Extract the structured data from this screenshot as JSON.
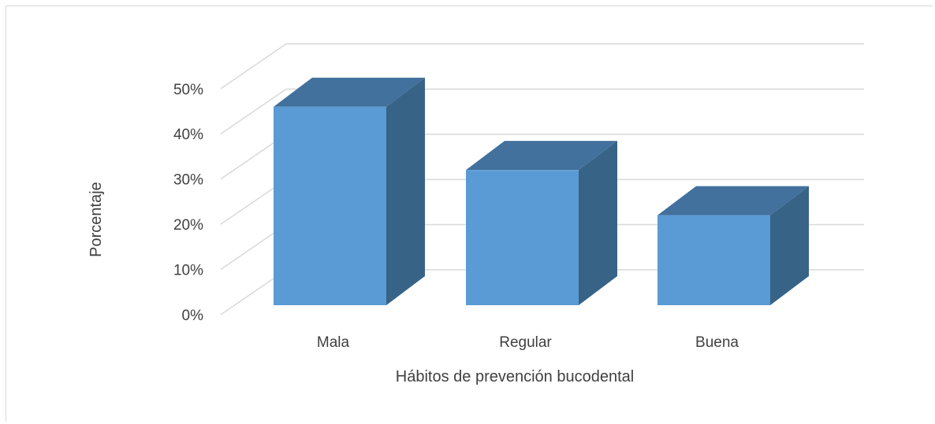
{
  "chart_data": {
    "type": "bar",
    "style": "3d-column",
    "title": "",
    "xlabel": "Hábitos de prevención bucodental",
    "ylabel": "Porcentaje",
    "categories": [
      "Mala",
      "Regular",
      "Buena"
    ],
    "values": [
      46,
      32,
      22
    ],
    "value_format": "percent",
    "ylim": [
      0,
      50
    ],
    "yticks": [
      0,
      10,
      20,
      30,
      40,
      50
    ],
    "ytick_labels": [
      "0%",
      "10%",
      "20%",
      "30%",
      "40%",
      "50%"
    ],
    "grid": true,
    "legend": "none",
    "colors": {
      "bar_front": "#5b9bd5",
      "bar_top": "#41719c",
      "bar_side": "#376387",
      "gridline": "#d9d9d9",
      "text": "#404040"
    }
  }
}
